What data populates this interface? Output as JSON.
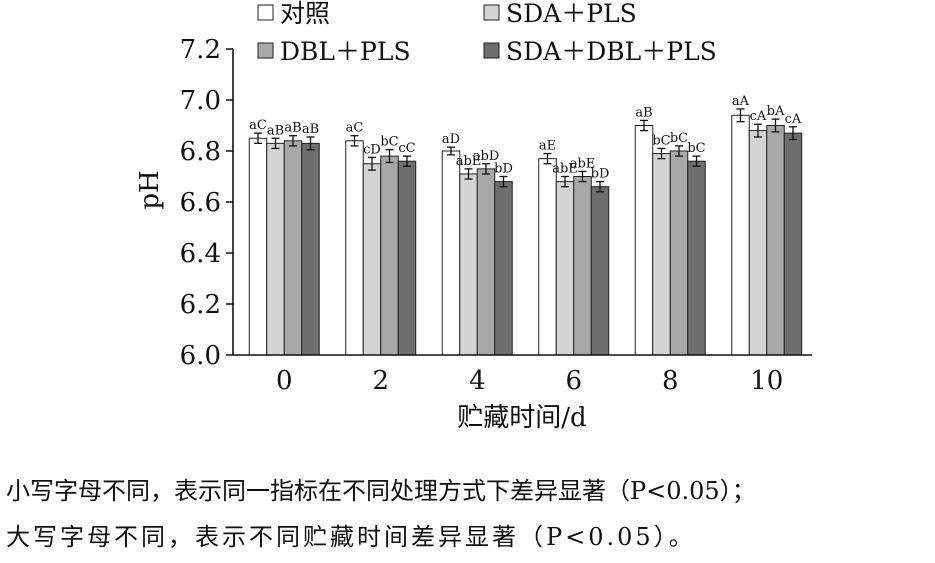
{
  "chart_data": {
    "type": "bar",
    "xlabel": "贮藏时间/d",
    "ylabel": "pH",
    "categories": [
      "0",
      "2",
      "4",
      "6",
      "8",
      "10"
    ],
    "ylim": [
      6.0,
      7.2
    ],
    "yticks": [
      "6.0",
      "6.2",
      "6.4",
      "6.6",
      "6.8",
      "7.0",
      "7.2"
    ],
    "legend_position": "top",
    "series": [
      {
        "name": "对照",
        "color": "#ffffff",
        "values": [
          6.85,
          6.84,
          6.8,
          6.77,
          6.9,
          6.94
        ],
        "errors": [
          0.02,
          0.02,
          0.015,
          0.02,
          0.02,
          0.025
        ],
        "labels": [
          "aC",
          "aC",
          "aD",
          "aE",
          "aB",
          "aA"
        ]
      },
      {
        "name": "SDA＋PLS",
        "color": "#d4d4d4",
        "values": [
          6.83,
          6.75,
          6.71,
          6.68,
          6.79,
          6.88
        ],
        "errors": [
          0.02,
          0.025,
          0.02,
          0.02,
          0.02,
          0.025
        ],
        "labels": [
          "aB",
          "cD",
          "abE",
          "abE",
          "bC",
          "cA"
        ]
      },
      {
        "name": "DBL＋PLS",
        "color": "#a8a8a8",
        "values": [
          6.84,
          6.78,
          6.73,
          6.7,
          6.8,
          6.9
        ],
        "errors": [
          0.02,
          0.025,
          0.02,
          0.02,
          0.02,
          0.025
        ],
        "labels": [
          "aB",
          "bC",
          "abD",
          "abE",
          "bC",
          "bA"
        ]
      },
      {
        "name": "SDA＋DBL＋PLS",
        "color": "#6e6e6e",
        "values": [
          6.83,
          6.76,
          6.68,
          6.66,
          6.76,
          6.87
        ],
        "errors": [
          0.025,
          0.02,
          0.02,
          0.02,
          0.02,
          0.025
        ],
        "labels": [
          "aB",
          "cC",
          "bD",
          "bD",
          "bC",
          "cA"
        ]
      }
    ]
  },
  "caption": {
    "line1": "小写字母不同，表示同一指标在不同处理方式下差异显著（P<0.05）；",
    "line2": "大写字母不同，表示不同贮藏时间差异显著（P<0.05）。"
  }
}
